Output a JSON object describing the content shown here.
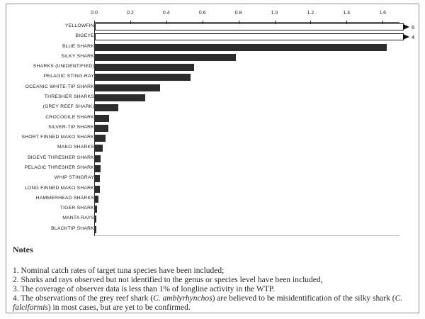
{
  "chart_data": {
    "type": "bar",
    "orientation": "horizontal",
    "title": "",
    "xlabel": "",
    "ylabel": "",
    "axis_position": "top",
    "grid": false,
    "legend": false,
    "xlim": [
      0,
      1.69
    ],
    "x_tick_labels": [
      "0.0",
      "0.2",
      "0.4",
      "0.6",
      "0.8",
      "1.0",
      "1.2",
      "1.4",
      "1.6"
    ],
    "x_tick_values": [
      0.0,
      0.2,
      0.4,
      0.6,
      0.8,
      1.0,
      1.2,
      1.4,
      1.6
    ],
    "series": [
      {
        "category": "YELLOWFIN",
        "value": 6,
        "overflow": true,
        "annotation": "6",
        "fill": "outline"
      },
      {
        "category": "BIGEYE",
        "value": 4,
        "overflow": true,
        "annotation": "4",
        "fill": "outline"
      },
      {
        "category": "BLUE SHARK",
        "value": 1.62,
        "fill": "solid"
      },
      {
        "category": "SILKY SHARK",
        "value": 0.78,
        "fill": "solid"
      },
      {
        "category": "SHARKS (UNIDENTIFIED)",
        "value": 0.55,
        "fill": "solid"
      },
      {
        "category": "PELAGIC STING-RAY",
        "value": 0.53,
        "fill": "solid"
      },
      {
        "category": "OCEANIC WHITE-TIP SHARK",
        "value": 0.36,
        "fill": "solid"
      },
      {
        "category": "THRESHER SHARKS",
        "value": 0.28,
        "fill": "solid"
      },
      {
        "category": "(GREY REEF SHARK)",
        "value": 0.13,
        "fill": "solid"
      },
      {
        "category": "CROCODILE SHARK",
        "value": 0.077,
        "fill": "solid"
      },
      {
        "category": "SILVER-TIP SHARK",
        "value": 0.075,
        "fill": "solid"
      },
      {
        "category": "SHORT FINNED MAKO SHARK",
        "value": 0.06,
        "fill": "solid"
      },
      {
        "category": "MAKO SHARKS",
        "value": 0.045,
        "fill": "solid"
      },
      {
        "category": "BIGEYE THRESHER SHARK",
        "value": 0.03,
        "fill": "solid"
      },
      {
        "category": "PELAGIC THRESHER SHARK",
        "value": 0.03,
        "fill": "solid"
      },
      {
        "category": "WHIP STINGRAY",
        "value": 0.027,
        "fill": "solid"
      },
      {
        "category": "LONG FINNED MAKO SHARK",
        "value": 0.027,
        "fill": "solid"
      },
      {
        "category": "HAMMERHEAD SHARKS",
        "value": 0.02,
        "fill": "solid"
      },
      {
        "category": "TIGER SHARK",
        "value": 0.012,
        "fill": "solid"
      },
      {
        "category": "MANTA RAYS",
        "value": 0.006,
        "fill": "solid"
      },
      {
        "category": "BLACKTIP SHARK",
        "value": 0.006,
        "fill": "solid"
      }
    ]
  },
  "notes": {
    "title": "Notes",
    "items": [
      {
        "segments": [
          {
            "t": "1. Nominal catch rates of target tuna species have been included;"
          }
        ]
      },
      {
        "segments": [
          {
            "t": "2. Sharks and rays observed but not identified to the genus or species level have been included,"
          }
        ]
      },
      {
        "segments": [
          {
            "t": "3. The coverage of observer data is less than 1% of longline activity in the WTP."
          }
        ]
      },
      {
        "segments": [
          {
            "t": "4. The observations of the grey reef shark ("
          },
          {
            "t": "C. amblyrhynchos",
            "i": true
          },
          {
            "t": ") are believed to be misidentification of the silky shark ("
          },
          {
            "t": "C. falciformis",
            "i": true
          },
          {
            "t": ") in most cases, but are yet to be confirmed."
          }
        ]
      }
    ]
  },
  "colors": {
    "bar_fill": "#2d2d2d",
    "bar_outline": "#1c1c1c",
    "overflow_fill": "#ffffff",
    "axis": "#2a2a2a",
    "frame_border": "#8f8f8f",
    "text": "#1f1f1f"
  }
}
